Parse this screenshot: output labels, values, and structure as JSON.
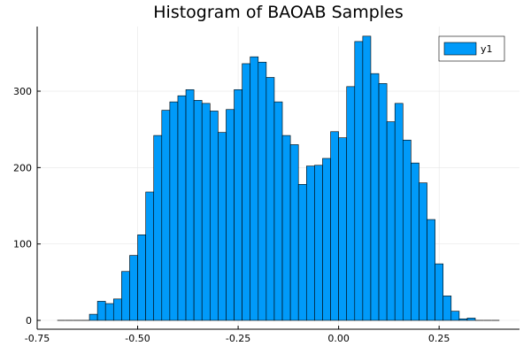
{
  "chart_data": {
    "type": "bar",
    "title": "Histogram of BAOAB Samples",
    "xlabel": "",
    "ylabel": "",
    "xlim": [
      -0.75,
      0.45
    ],
    "ylim": [
      0,
      380
    ],
    "x_ticks": [
      -0.75,
      -0.5,
      -0.25,
      0.0,
      0.25
    ],
    "x_tick_labels": [
      "-0.75",
      "-0.50",
      "-0.25",
      "0.00",
      "0.25"
    ],
    "y_ticks": [
      0,
      100,
      200,
      300
    ],
    "y_tick_labels": [
      "0",
      "100",
      "200",
      "300"
    ],
    "grid": true,
    "legend": {
      "position": "top-right",
      "entries": [
        "y1"
      ]
    },
    "colors": {
      "bar_fill": "#009AF9",
      "bar_stroke": "#000000",
      "grid": "#E6E6E6"
    },
    "bin_width": 0.02,
    "bin_starts": [
      -0.7,
      -0.68,
      -0.66,
      -0.64,
      -0.62,
      -0.6,
      -0.58,
      -0.56,
      -0.54,
      -0.52,
      -0.5,
      -0.48,
      -0.46,
      -0.44,
      -0.42,
      -0.4,
      -0.38,
      -0.36,
      -0.34,
      -0.32,
      -0.3,
      -0.28,
      -0.26,
      -0.24,
      -0.22,
      -0.2,
      -0.18,
      -0.16,
      -0.14,
      -0.12,
      -0.1,
      -0.08,
      -0.06,
      -0.04,
      -0.02,
      0.0,
      0.02,
      0.04,
      0.06,
      0.08,
      0.1,
      0.12,
      0.14,
      0.16,
      0.18,
      0.2,
      0.22,
      0.24,
      0.26,
      0.28,
      0.3,
      0.32,
      0.34,
      0.36,
      0.38
    ],
    "series": [
      {
        "name": "y1",
        "values": [
          0,
          0,
          0,
          0,
          8,
          25,
          22,
          28,
          64,
          85,
          112,
          168,
          242,
          275,
          286,
          294,
          302,
          288,
          284,
          274,
          246,
          276,
          302,
          336,
          345,
          338,
          318,
          286,
          242,
          230,
          178,
          202,
          203,
          212,
          247,
          239,
          306,
          365,
          372,
          323,
          310,
          260,
          284,
          236,
          206,
          180,
          132,
          74,
          32,
          12,
          2,
          3,
          0,
          0,
          0
        ]
      }
    ]
  }
}
